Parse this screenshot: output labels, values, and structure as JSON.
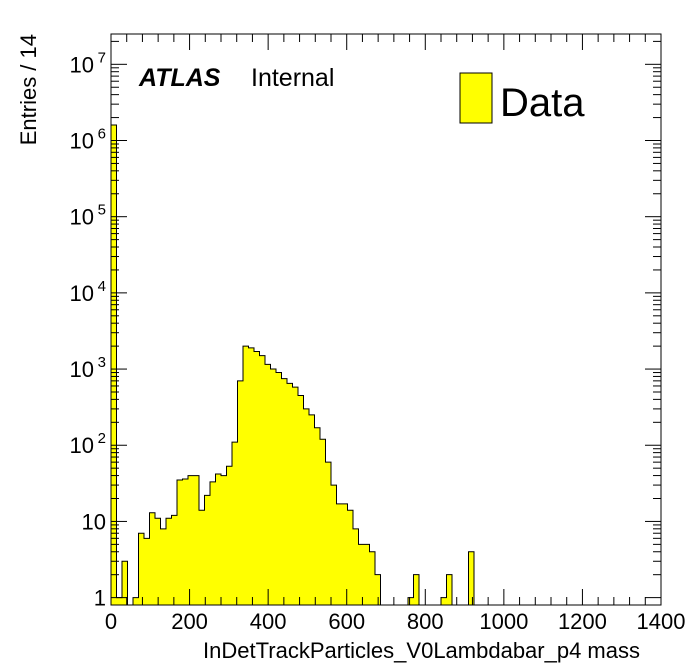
{
  "chart_data": {
    "type": "bar",
    "title": "",
    "xlabel": "InDetTrackParticles_V0Lambdabar_p4 mass",
    "ylabel": "Entries / 14",
    "xlim": [
      0,
      1400
    ],
    "ylim": [
      0.8,
      25000000
    ],
    "log_y": true,
    "grid": false,
    "legend_position": "top-right",
    "bin_width": 14,
    "colors": {
      "fill": "#ffff00",
      "line": "#000000"
    },
    "x_ticks": [
      0,
      200,
      400,
      600,
      800,
      1000,
      1200,
      1400
    ],
    "y_ticks": [
      {
        "value": 1,
        "base": "1",
        "exp": ""
      },
      {
        "value": 10,
        "base": "10",
        "exp": ""
      },
      {
        "value": 100,
        "base": "10",
        "exp": "2"
      },
      {
        "value": 1000,
        "base": "10",
        "exp": "3"
      },
      {
        "value": 10000,
        "base": "10",
        "exp": "4"
      },
      {
        "value": 100000,
        "base": "10",
        "exp": "5"
      },
      {
        "value": 1000000,
        "base": "10",
        "exp": "6"
      },
      {
        "value": 10000000,
        "base": "10",
        "exp": "7"
      }
    ],
    "annotations": {
      "atlas": "ATLAS",
      "internal": "Internal"
    },
    "series": [
      {
        "name": "Data",
        "bins": [
          {
            "x": 0,
            "value": 1600000
          },
          {
            "x": 14,
            "value": 1
          },
          {
            "x": 28,
            "value": 3
          },
          {
            "x": 56,
            "value": 1
          },
          {
            "x": 70,
            "value": 7
          },
          {
            "x": 84,
            "value": 6
          },
          {
            "x": 98,
            "value": 13
          },
          {
            "x": 112,
            "value": 11
          },
          {
            "x": 126,
            "value": 8
          },
          {
            "x": 140,
            "value": 11
          },
          {
            "x": 154,
            "value": 12
          },
          {
            "x": 168,
            "value": 35
          },
          {
            "x": 182,
            "value": 36
          },
          {
            "x": 196,
            "value": 40
          },
          {
            "x": 210,
            "value": 40
          },
          {
            "x": 224,
            "value": 14
          },
          {
            "x": 238,
            "value": 22
          },
          {
            "x": 252,
            "value": 33
          },
          {
            "x": 266,
            "value": 42
          },
          {
            "x": 280,
            "value": 40
          },
          {
            "x": 294,
            "value": 53
          },
          {
            "x": 308,
            "value": 110
          },
          {
            "x": 322,
            "value": 700
          },
          {
            "x": 336,
            "value": 2000
          },
          {
            "x": 350,
            "value": 1900
          },
          {
            "x": 364,
            "value": 1700
          },
          {
            "x": 378,
            "value": 1500
          },
          {
            "x": 392,
            "value": 1150
          },
          {
            "x": 406,
            "value": 1000
          },
          {
            "x": 420,
            "value": 900
          },
          {
            "x": 434,
            "value": 750
          },
          {
            "x": 448,
            "value": 650
          },
          {
            "x": 462,
            "value": 580
          },
          {
            "x": 476,
            "value": 450
          },
          {
            "x": 490,
            "value": 300
          },
          {
            "x": 504,
            "value": 250
          },
          {
            "x": 518,
            "value": 170
          },
          {
            "x": 532,
            "value": 120
          },
          {
            "x": 546,
            "value": 60
          },
          {
            "x": 560,
            "value": 30
          },
          {
            "x": 574,
            "value": 17
          },
          {
            "x": 588,
            "value": 17
          },
          {
            "x": 602,
            "value": 14
          },
          {
            "x": 616,
            "value": 8
          },
          {
            "x": 630,
            "value": 5
          },
          {
            "x": 644,
            "value": 5
          },
          {
            "x": 658,
            "value": 4
          },
          {
            "x": 672,
            "value": 2
          },
          {
            "x": 756,
            "value": 1
          },
          {
            "x": 770,
            "value": 2
          },
          {
            "x": 840,
            "value": 1
          },
          {
            "x": 854,
            "value": 2
          },
          {
            "x": 910,
            "value": 4
          }
        ]
      }
    ]
  }
}
